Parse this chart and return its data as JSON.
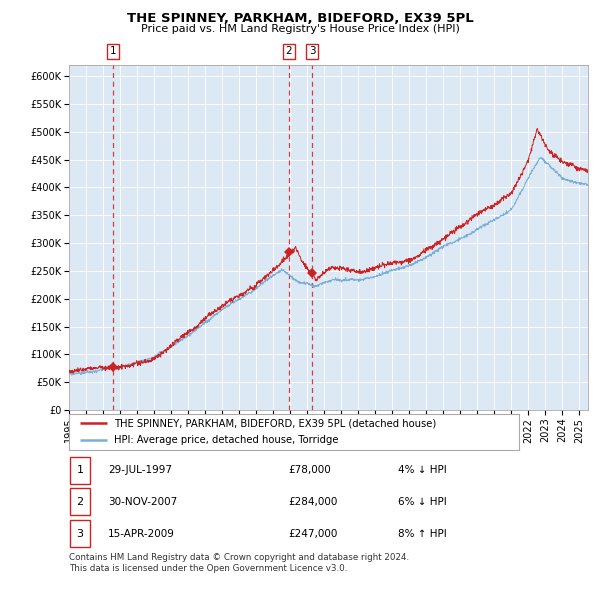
{
  "title": "THE SPINNEY, PARKHAM, BIDEFORD, EX39 5PL",
  "subtitle": "Price paid vs. HM Land Registry's House Price Index (HPI)",
  "legend_line1": "THE SPINNEY, PARKHAM, BIDEFORD, EX39 5PL (detached house)",
  "legend_line2": "HPI: Average price, detached house, Torridge",
  "transactions": [
    {
      "id": 1,
      "date": "29-JUL-1997",
      "year": 1997.57,
      "price": 78000,
      "pct": "4%",
      "dir": "↓",
      "label": "1"
    },
    {
      "id": 2,
      "date": "30-NOV-2007",
      "year": 2007.92,
      "price": 284000,
      "pct": "6%",
      "dir": "↓",
      "label": "2"
    },
    {
      "id": 3,
      "date": "15-APR-2009",
      "year": 2009.29,
      "price": 247000,
      "pct": "8%",
      "dir": "↑",
      "label": "3"
    }
  ],
  "table_rows": [
    {
      "id": 1,
      "date": "29-JUL-1997",
      "price": "£78,000",
      "note": "4% ↓ HPI"
    },
    {
      "id": 2,
      "date": "30-NOV-2007",
      "price": "£284,000",
      "note": "6% ↓ HPI"
    },
    {
      "id": 3,
      "date": "15-APR-2009",
      "price": "£247,000",
      "note": "8% ↑ HPI"
    }
  ],
  "footer": "Contains HM Land Registry data © Crown copyright and database right 2024.\nThis data is licensed under the Open Government Licence v3.0.",
  "hpi_color": "#7aaed4",
  "price_color": "#cc2222",
  "plot_bg": "#dce9f5",
  "dashed_color": "#cc2222",
  "ylim": [
    0,
    620000
  ],
  "xlim_start": 1995.0,
  "xlim_end": 2025.5,
  "yticks": [
    0,
    50000,
    100000,
    150000,
    200000,
    250000,
    300000,
    350000,
    400000,
    450000,
    500000,
    550000,
    600000
  ],
  "ytick_labels": [
    "£0",
    "£50K",
    "£100K",
    "£150K",
    "£200K",
    "£250K",
    "£300K",
    "£350K",
    "£400K",
    "£450K",
    "£500K",
    "£550K",
    "£600K"
  ],
  "xticks": [
    1995,
    1996,
    1997,
    1998,
    1999,
    2000,
    2001,
    2002,
    2003,
    2004,
    2005,
    2006,
    2007,
    2008,
    2009,
    2010,
    2011,
    2012,
    2013,
    2014,
    2015,
    2016,
    2017,
    2018,
    2019,
    2020,
    2021,
    2022,
    2023,
    2024,
    2025
  ]
}
